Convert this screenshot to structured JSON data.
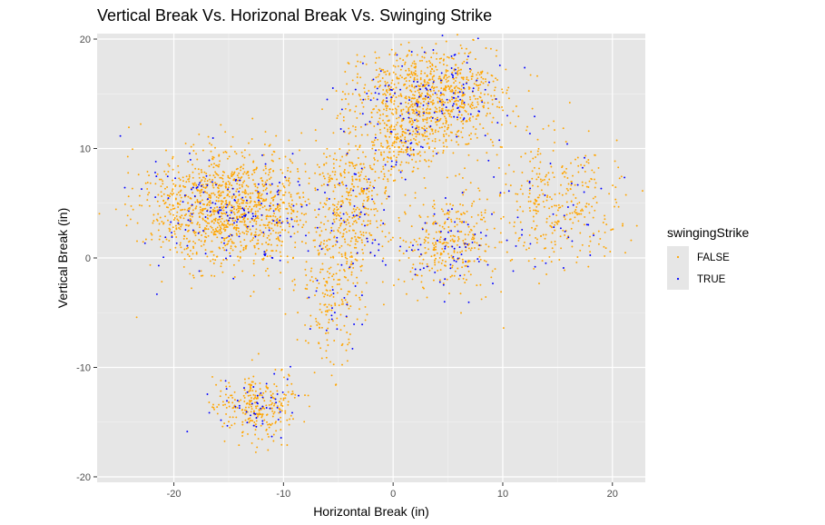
{
  "chart_data": {
    "type": "scatter",
    "title": "Vertical Break Vs. Horizonal Break Vs. Swinging Strike",
    "xlabel": "Horizontal Break (in)",
    "ylabel": "Vertical Break (in)",
    "xlim": [
      -27,
      23
    ],
    "ylim": [
      -20.5,
      20.5
    ],
    "x_ticks": [
      -20,
      -10,
      0,
      10,
      20
    ],
    "y_ticks": [
      -20,
      -10,
      0,
      10,
      20
    ],
    "x_tick_labels": [
      "-20",
      "-10",
      "0",
      "10",
      "20"
    ],
    "y_tick_labels": [
      "-20",
      "-10",
      "0",
      "10",
      "20"
    ],
    "grid": true,
    "panel_background": "#e6e6e6",
    "legend": {
      "title": "swingingStrike",
      "position": "right",
      "entries": [
        {
          "label": "FALSE",
          "color": "#FFA500"
        },
        {
          "label": "TRUE",
          "color": "#0000FF"
        }
      ]
    },
    "clusters": [
      {
        "cx": -15.0,
        "cy": 4.5,
        "sx": 3.8,
        "sy": 2.6,
        "n_false": 1200,
        "n_true": 160
      },
      {
        "cx": 3.5,
        "cy": 14.5,
        "sx": 3.3,
        "sy": 2.3,
        "n_false": 900,
        "n_true": 130
      },
      {
        "cx": -3.5,
        "cy": 5.5,
        "sx": 1.6,
        "sy": 3.2,
        "n_false": 380,
        "n_true": 50
      },
      {
        "cx": -5.5,
        "cy": -2.5,
        "sx": 1.4,
        "sy": 3.8,
        "n_false": 200,
        "n_true": 28
      },
      {
        "cx": 5.0,
        "cy": 1.5,
        "sx": 2.3,
        "sy": 2.2,
        "n_false": 300,
        "n_true": 70
      },
      {
        "cx": 15.0,
        "cy": 5.0,
        "sx": 3.0,
        "sy": 3.0,
        "n_false": 330,
        "n_true": 38
      },
      {
        "cx": -12.5,
        "cy": -13.5,
        "sx": 2.0,
        "sy": 1.5,
        "n_false": 270,
        "n_true": 50
      },
      {
        "cx": 0.5,
        "cy": 10.5,
        "sx": 1.5,
        "sy": 1.5,
        "n_false": 140,
        "n_true": 22
      }
    ],
    "series": [
      {
        "name": "FALSE",
        "color": "#FFA500"
      },
      {
        "name": "TRUE",
        "color": "#0000FF"
      }
    ]
  }
}
